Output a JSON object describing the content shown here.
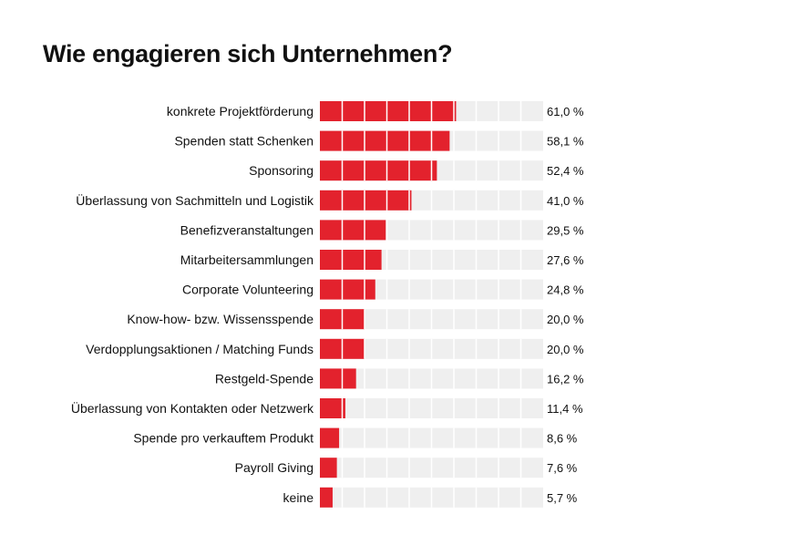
{
  "title": "Wie engagieren sich Unternehmen?",
  "colors": {
    "bar": "#e3222d",
    "track": "#efefef",
    "segment": "#ffffff",
    "text": "#111111"
  },
  "chart_data": {
    "type": "bar",
    "orientation": "horizontal",
    "title": "Wie engagieren sich Unternehmen?",
    "xlim": [
      0,
      100
    ],
    "unit": "%",
    "categories": [
      "konkrete Projektförderung",
      "Spenden statt Schenken",
      "Sponsoring",
      "Überlassung von Sachmitteln und Logistik",
      "Benefizveranstaltungen",
      "Mitarbeitersammlungen",
      "Corporate Volunteering",
      "Know-how- bzw. Wissensspende",
      "Verdopplungsaktionen / Matching Funds",
      "Restgeld-Spende",
      "Überlassung von Kontakten oder Netzwerk",
      "Spende pro verkauftem Produkt",
      "Payroll Giving",
      "keine"
    ],
    "values": [
      61.0,
      58.1,
      52.4,
      41.0,
      29.5,
      27.6,
      24.8,
      20.0,
      20.0,
      16.2,
      11.4,
      8.6,
      7.6,
      5.7
    ],
    "value_labels": [
      "61,0 %",
      "58,1 %",
      "52,4 %",
      "41,0 %",
      "29,5 %",
      "27,6 %",
      "24,8 %",
      "20,0 %",
      "20,0 %",
      "16,2 %",
      "11,4 %",
      "8,6 %",
      "7,6 %",
      "5,7 %"
    ]
  }
}
